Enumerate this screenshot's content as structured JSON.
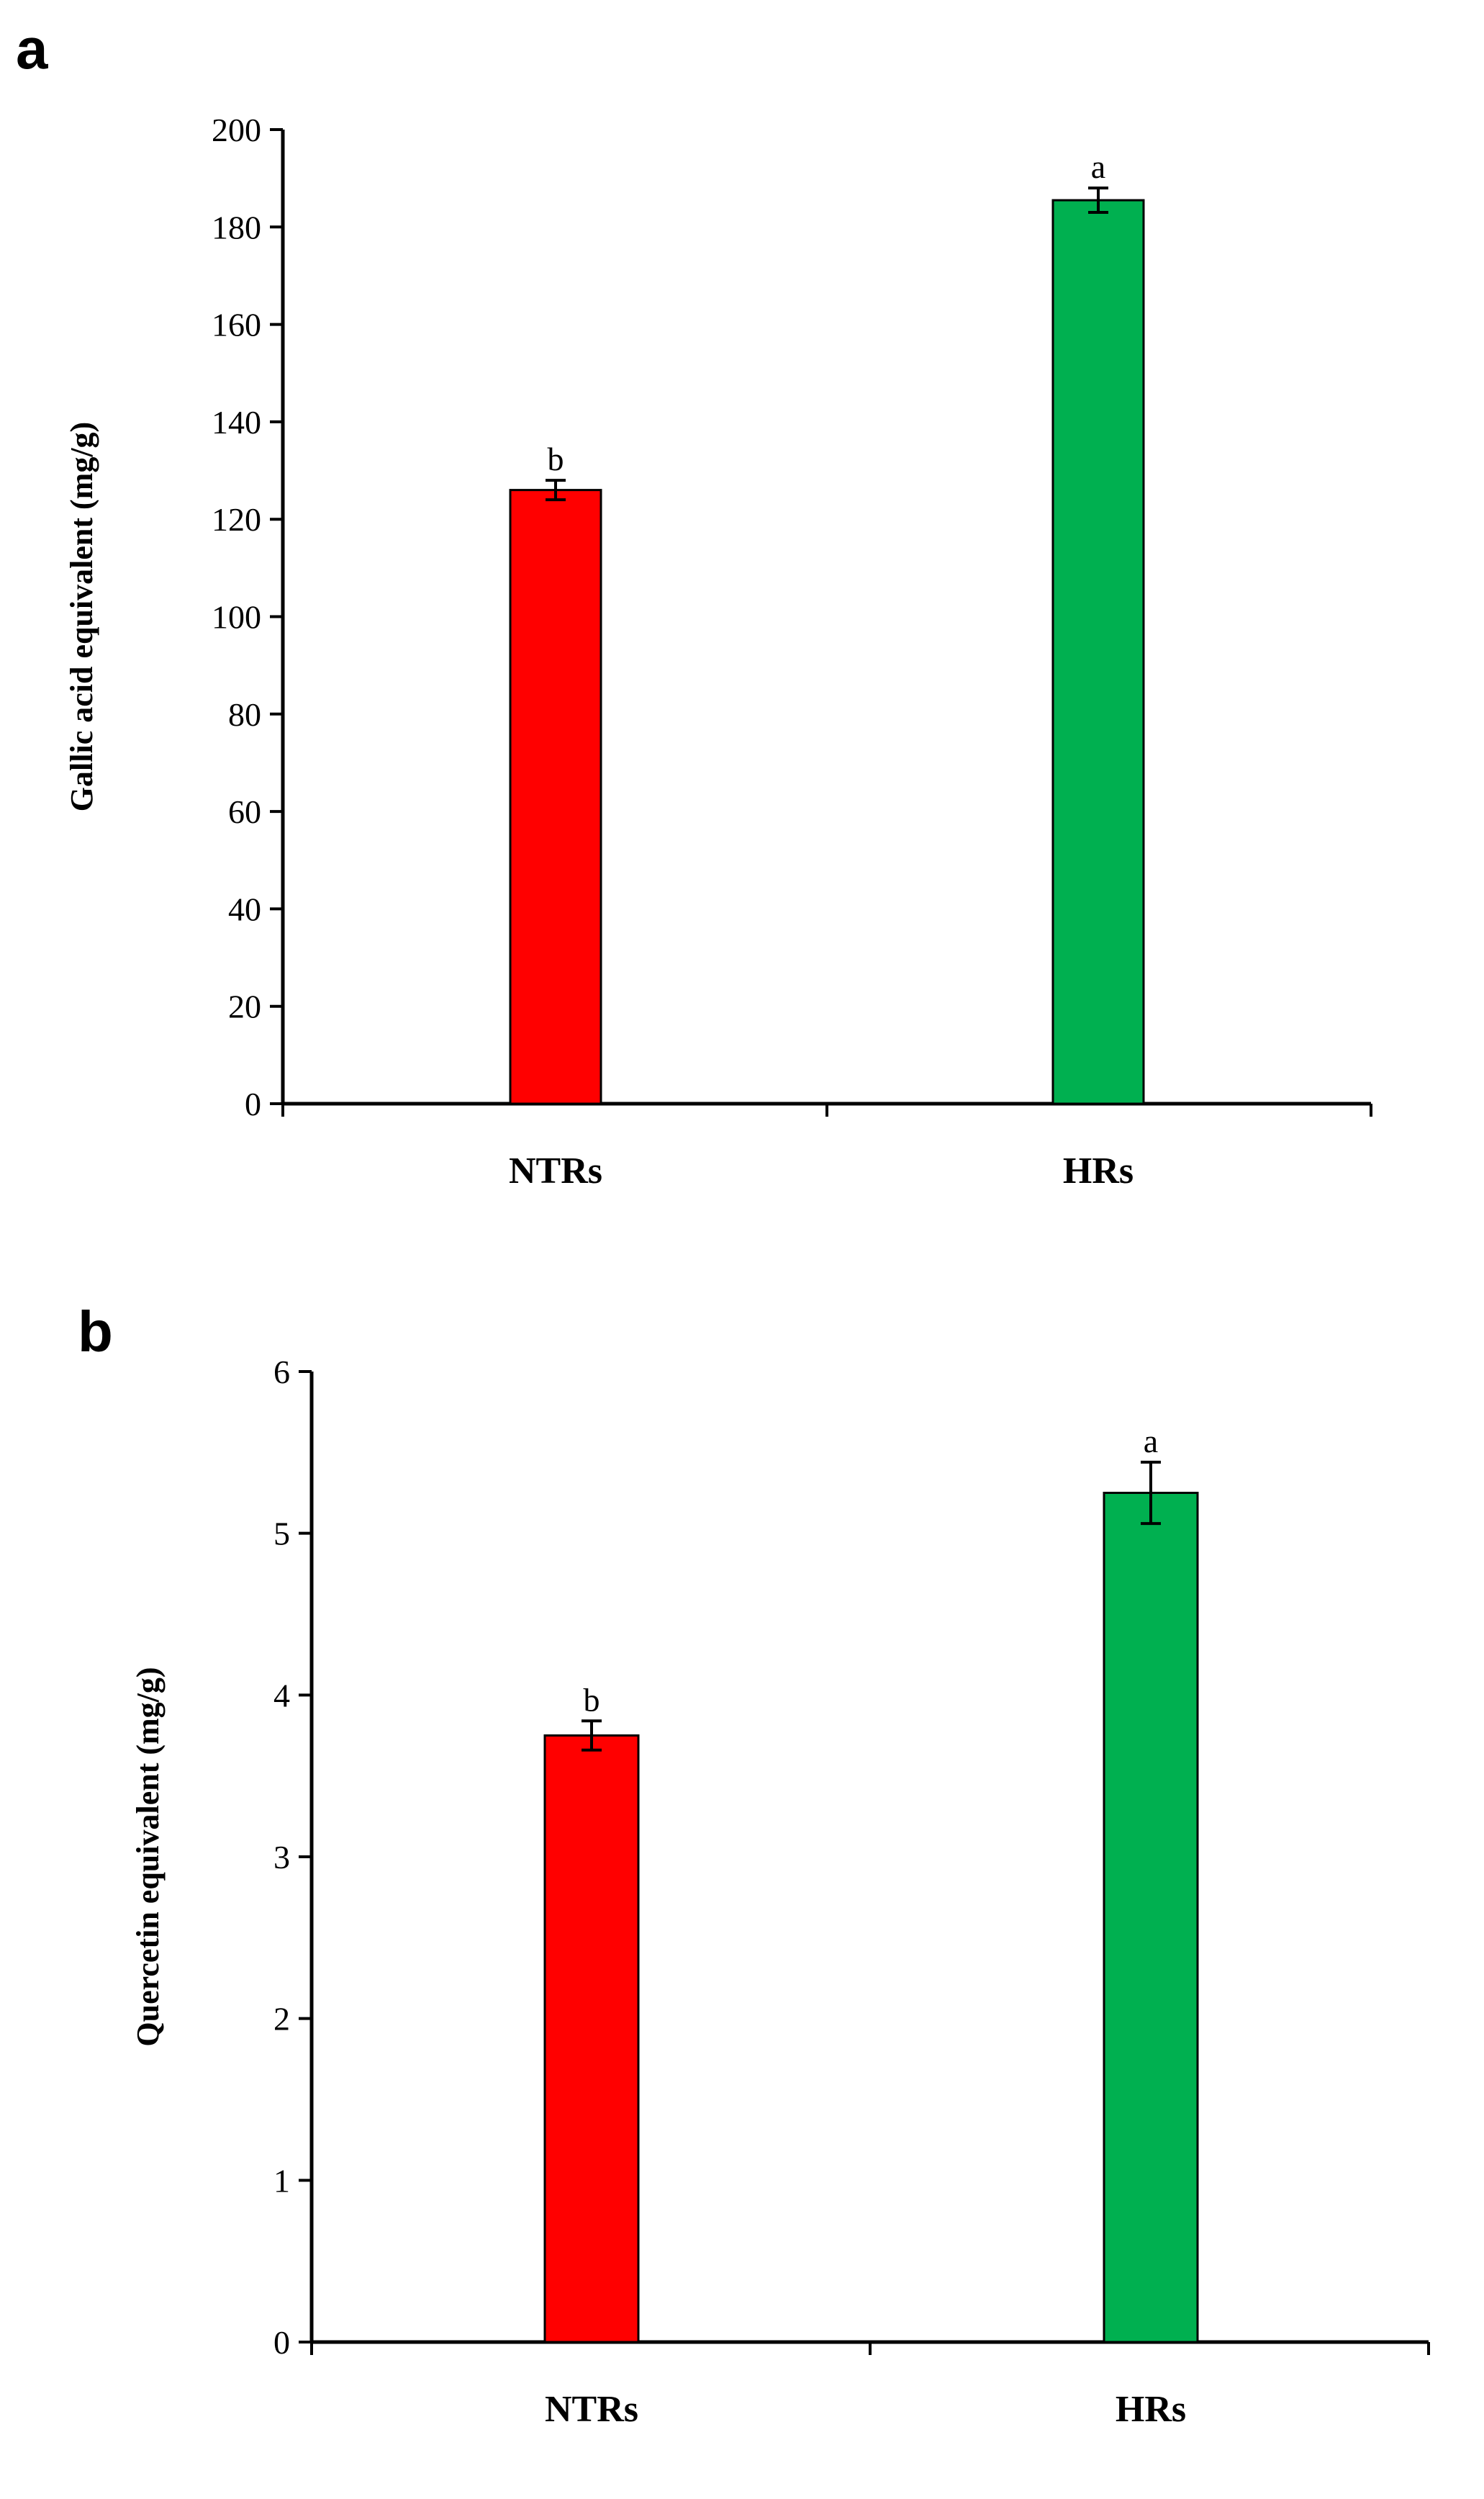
{
  "chart_data": [
    {
      "panel": "a",
      "type": "bar",
      "categories": [
        "NTRs",
        "HRs"
      ],
      "values": [
        126,
        185.5
      ],
      "errors": [
        2,
        2.5
      ],
      "significance": [
        "b",
        "a"
      ],
      "colors": [
        "#ff0000",
        "#00b050"
      ],
      "ylabel": "Gallic acid equivalent  (mg/g)",
      "xlabel": "",
      "ylim": [
        0,
        200
      ],
      "yticks": [
        0,
        20,
        40,
        60,
        80,
        100,
        120,
        140,
        160,
        180,
        200
      ],
      "grid": false
    },
    {
      "panel": "b",
      "type": "bar",
      "categories": [
        "NTRs",
        "HRs"
      ],
      "values": [
        3.75,
        5.25
      ],
      "errors": [
        0.09,
        0.19
      ],
      "significance": [
        "b",
        "a"
      ],
      "colors": [
        "#ff0000",
        "#00b050"
      ],
      "ylabel": "Quercetin equivalent  (mg/g)",
      "xlabel": "",
      "ylim": [
        0,
        6
      ],
      "yticks": [
        0,
        1,
        2,
        3,
        4,
        5,
        6
      ],
      "grid": false
    }
  ]
}
